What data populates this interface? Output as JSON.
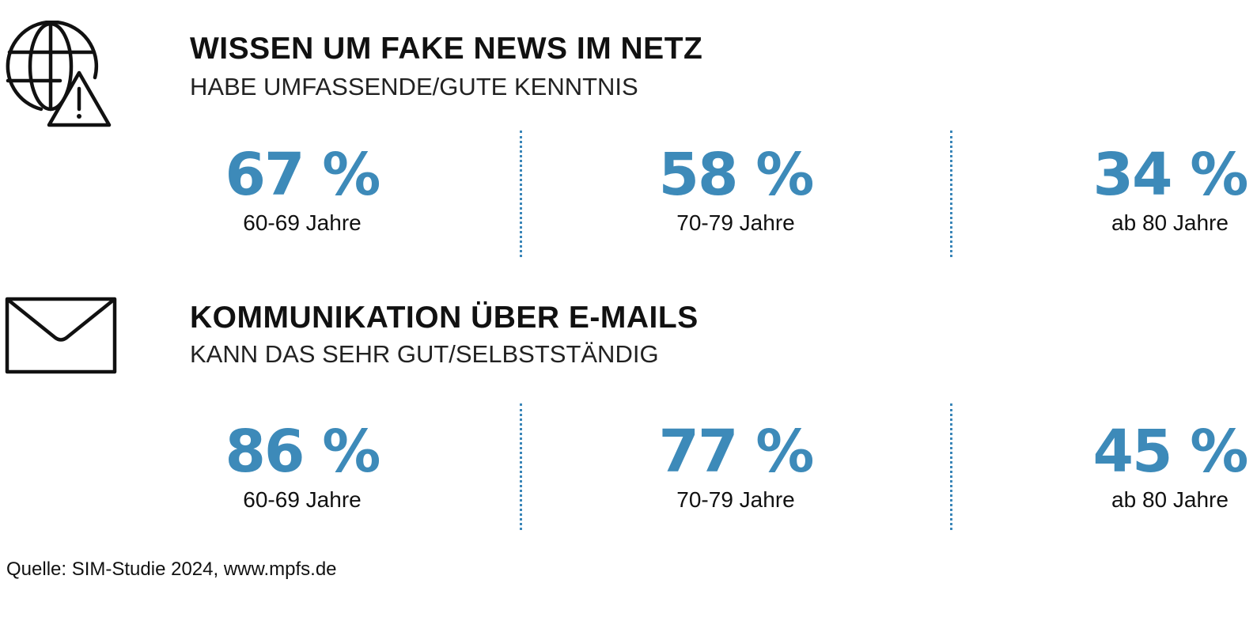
{
  "accent_color": "#3d8ab9",
  "icons": [
    "globe-warning-icon",
    "envelope-icon"
  ],
  "chart_data": [
    {
      "type": "table",
      "title": "WISSEN UM FAKE NEWS IM NETZ",
      "subtitle": "HABE UMFASSENDE/GUTE KENNTNIS",
      "categories": [
        "60-69 Jahre",
        "70-79 Jahre",
        "ab 80 Jahre"
      ],
      "values": [
        67,
        58,
        34
      ],
      "unit": "%",
      "value_labels": [
        "67 %",
        "58 %",
        "34 %"
      ]
    },
    {
      "type": "table",
      "title": "KOMMUNIKATION ÜBER E-MAILS",
      "subtitle": "KANN DAS SEHR GUT/SELBSTSTÄNDIG",
      "categories": [
        "60-69 Jahre",
        "70-79 Jahre",
        "ab 80 Jahre"
      ],
      "values": [
        86,
        77,
        45
      ],
      "unit": "%",
      "value_labels": [
        "86 %",
        "77 %",
        "45 %"
      ]
    }
  ],
  "source": "Quelle: SIM-Studie 2024, www.mpfs.de"
}
